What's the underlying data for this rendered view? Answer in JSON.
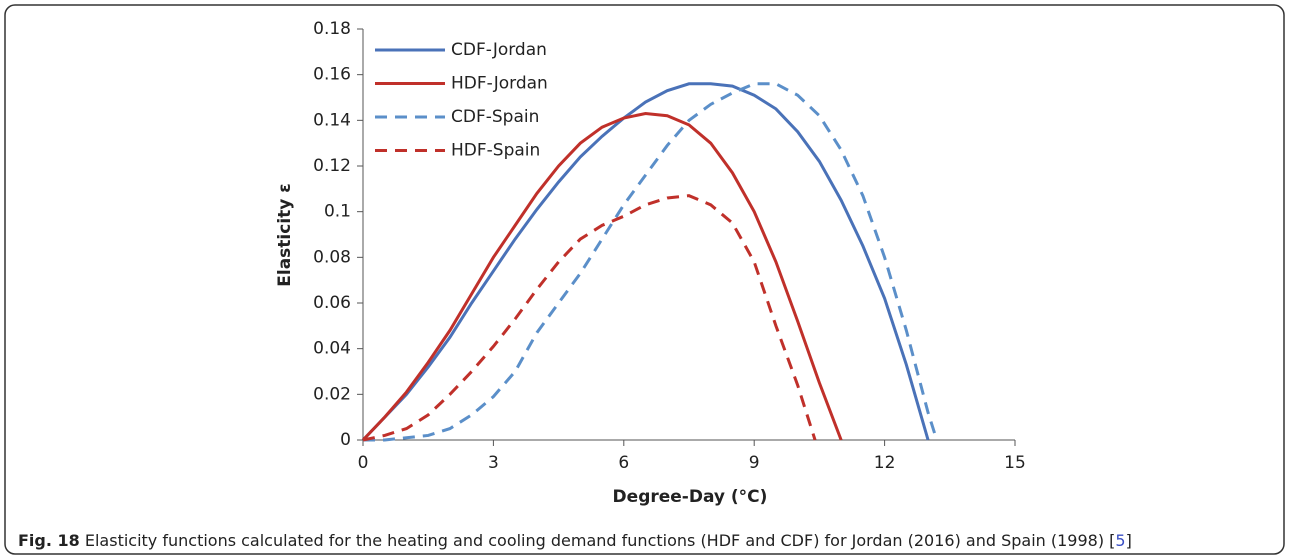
{
  "chart_data": {
    "type": "line",
    "xlabel": "Degree-Day (°C)",
    "ylabel": "Elasticity ε",
    "xlim": [
      0,
      15
    ],
    "xticks": [
      0,
      3,
      6,
      9,
      12,
      15
    ],
    "ylim": [
      0,
      0.18
    ],
    "yticks": [
      0,
      0.02,
      0.04,
      0.06,
      0.08,
      0.1,
      0.12,
      0.14,
      0.16,
      0.18
    ],
    "legend": "upper left",
    "series": [
      {
        "name": "CDF-Jordan",
        "color": "#4a72b8",
        "dash": "solid",
        "x": [
          0,
          0.5,
          1,
          1.5,
          2,
          2.5,
          3,
          3.5,
          4,
          4.5,
          5,
          5.5,
          6,
          6.5,
          7,
          7.5,
          8,
          8.5,
          9,
          9.5,
          10,
          10.5,
          11,
          11.5,
          12,
          12.5,
          13
        ],
        "values": [
          0,
          0.01,
          0.02,
          0.032,
          0.045,
          0.06,
          0.074,
          0.088,
          0.101,
          0.113,
          0.124,
          0.133,
          0.141,
          0.148,
          0.153,
          0.156,
          0.156,
          0.155,
          0.151,
          0.145,
          0.135,
          0.122,
          0.105,
          0.085,
          0.062,
          0.033,
          0
        ]
      },
      {
        "name": "HDF-Jordan",
        "color": "#c0302a",
        "dash": "solid",
        "x": [
          0,
          0.5,
          1,
          1.5,
          2,
          2.5,
          3,
          3.5,
          4,
          4.5,
          5,
          5.5,
          6,
          6.5,
          7,
          7.5,
          8,
          8.5,
          9,
          9.5,
          10,
          10.5,
          11
        ],
        "values": [
          0,
          0.01,
          0.021,
          0.034,
          0.048,
          0.064,
          0.08,
          0.094,
          0.108,
          0.12,
          0.13,
          0.137,
          0.141,
          0.143,
          0.142,
          0.138,
          0.13,
          0.117,
          0.1,
          0.078,
          0.052,
          0.025,
          0
        ]
      },
      {
        "name": "CDF-Spain",
        "color": "#5b8fc9",
        "dash": "dashed",
        "x": [
          0,
          0.5,
          1,
          1.5,
          2,
          2.5,
          3,
          3.5,
          4,
          4.5,
          5,
          5.5,
          6,
          6.5,
          7,
          7.5,
          8,
          8.5,
          9,
          9.5,
          10,
          10.5,
          11,
          11.5,
          12,
          12.5,
          13,
          13.2
        ],
        "values": [
          0,
          0,
          0.001,
          0.002,
          0.005,
          0.011,
          0.019,
          0.03,
          0.047,
          0.06,
          0.073,
          0.088,
          0.103,
          0.116,
          0.129,
          0.14,
          0.147,
          0.152,
          0.156,
          0.156,
          0.151,
          0.142,
          0.127,
          0.107,
          0.08,
          0.048,
          0.012,
          0
        ]
      },
      {
        "name": "HDF-Spain",
        "color": "#c0302a",
        "dash": "dashed",
        "x": [
          0,
          0.5,
          1,
          1.5,
          2,
          2.5,
          3,
          3.5,
          4,
          4.5,
          5,
          5.5,
          6,
          6.5,
          7,
          7.5,
          8,
          8.5,
          9,
          9.5,
          10,
          10.4
        ],
        "values": [
          0,
          0.002,
          0.005,
          0.011,
          0.02,
          0.03,
          0.041,
          0.053,
          0.066,
          0.078,
          0.088,
          0.094,
          0.098,
          0.103,
          0.106,
          0.107,
          0.103,
          0.095,
          0.078,
          0.05,
          0.024,
          0
        ]
      }
    ]
  },
  "caption": {
    "label": "Fig. 18",
    "text": " Elasticity functions calculated for the heating and cooling demand functions (HDF and CDF) for Jordan (2016) and Spain (1998) [",
    "ref": "5",
    "close": "]"
  }
}
